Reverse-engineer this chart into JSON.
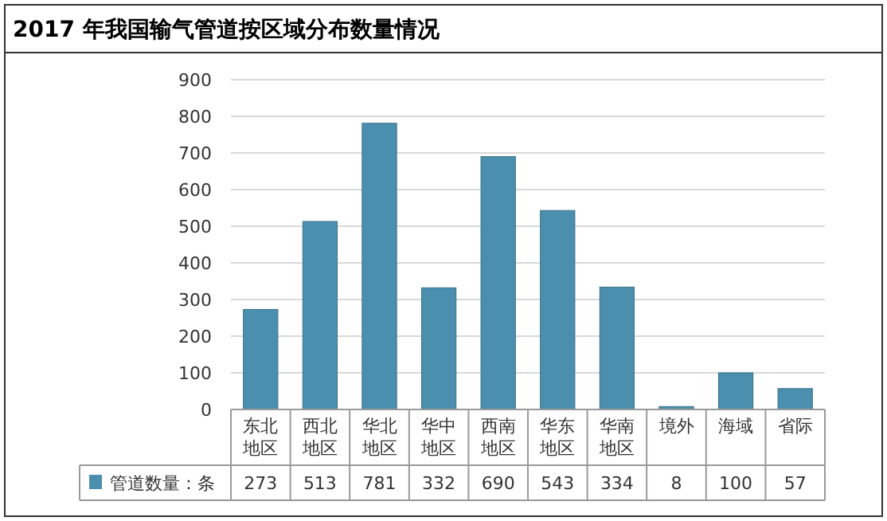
{
  "chart_data": {
    "type": "bar",
    "title": "2017 年我国输气管道按区域分布数量情况",
    "categories": [
      "东北地区",
      "西北地区",
      "华北地区",
      "华中地区",
      "西南地区",
      "华东地区",
      "华南地区",
      "境外",
      "海域",
      "省际"
    ],
    "series": [
      {
        "name": "管道数量：条",
        "color": "#4b8fae",
        "values": [
          273,
          513,
          781,
          332,
          690,
          543,
          334,
          8,
          100,
          57
        ]
      }
    ],
    "ylim": [
      0,
      900
    ],
    "yticks": [
      0,
      100,
      200,
      300,
      400,
      500,
      600,
      700,
      800,
      900
    ],
    "grid": "y",
    "legend": "bottom",
    "data_labels": true
  }
}
